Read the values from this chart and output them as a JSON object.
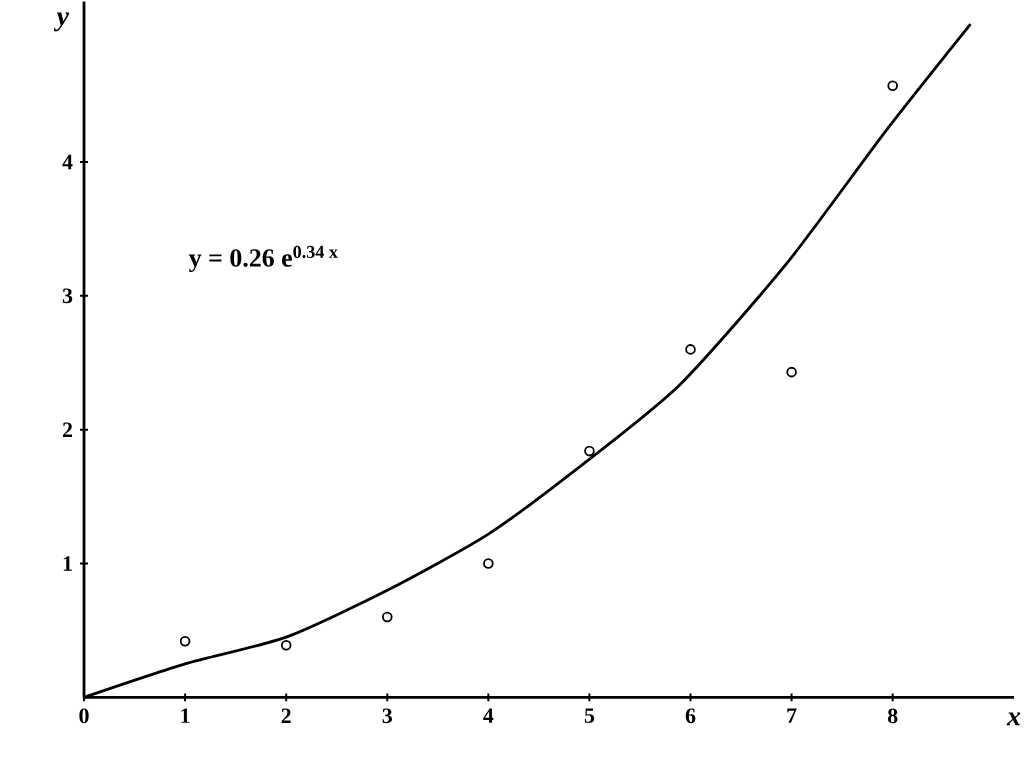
{
  "chart_data": {
    "type": "scatter",
    "xlabel": "x",
    "ylabel": "y",
    "xlim": [
      0,
      9.2
    ],
    "ylim": [
      0,
      5.2
    ],
    "xticks": [
      0,
      1,
      2,
      3,
      4,
      5,
      6,
      7,
      8
    ],
    "yticks": [
      1,
      2,
      3,
      4
    ],
    "grid": false,
    "marker": "circle",
    "annotations": [
      "y = 0.26 e$^{0.34 x}$"
    ],
    "series": [
      {
        "color": "#000000",
        "x": [
          1,
          2,
          3,
          4,
          5,
          6,
          7,
          8
        ],
        "values": [
          0.42,
          0.39,
          0.6,
          1.0,
          1.84,
          2.6,
          2.43,
          4.57
        ]
      },
      {
        "type": "line",
        "color": "#000000",
        "marker": "none",
        "line_style": "solid",
        "x": [
          0,
          1,
          2,
          3,
          4,
          4.95,
          5.9,
          6.95,
          7.94,
          8.77
        ],
        "values": [
          0,
          0.25,
          0.45,
          0.8,
          1.22,
          1.75,
          2.34,
          3.24,
          4.24,
          5.03
        ]
      }
    ]
  }
}
